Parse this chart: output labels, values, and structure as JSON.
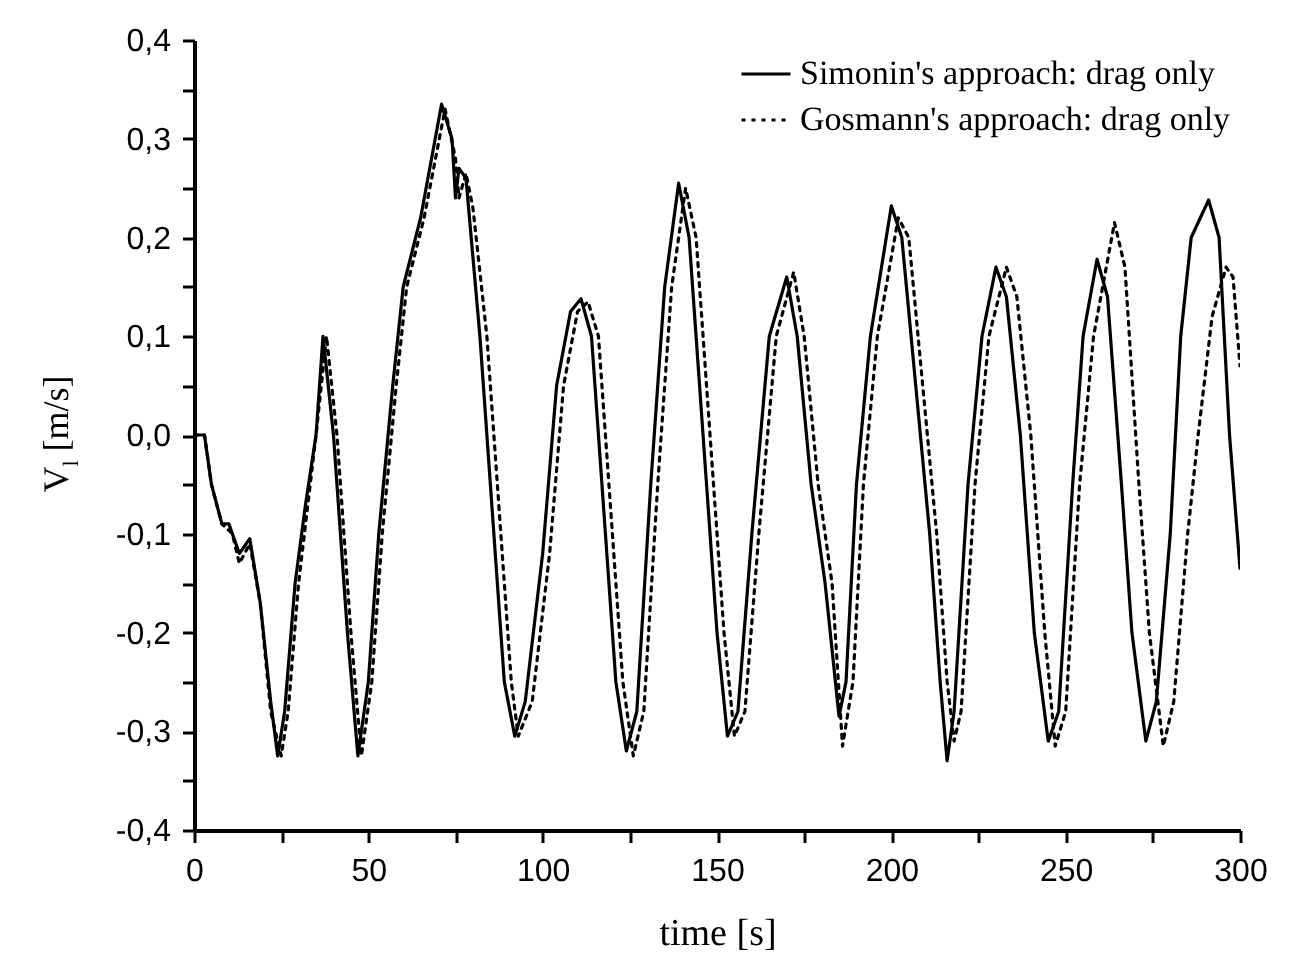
{
  "chart_data": {
    "type": "line",
    "xlabel": "time [s]",
    "ylabel": "V$_{l}$ [m/s]",
    "legend": "top right",
    "xlim": [
      0,
      300
    ],
    "ylim": [
      -0.4,
      0.4
    ],
    "xticks": [
      0,
      {
        "value": 25,
        "label": null
      },
      50,
      {
        "value": 75,
        "label": null
      },
      100,
      {
        "value": 125,
        "label": null
      },
      150,
      {
        "value": 175,
        "label": null
      },
      200,
      {
        "value": 225,
        "label": null
      },
      250,
      {
        "value": 275,
        "label": null
      },
      300
    ],
    "yticks": [
      {
        "value": -0.4,
        "label": "-0,4"
      },
      {
        "value": -0.35,
        "label": null
      },
      {
        "value": -0.3,
        "label": "-0,3"
      },
      {
        "value": -0.25,
        "label": null
      },
      {
        "value": -0.2,
        "label": "-0,2"
      },
      {
        "value": -0.15,
        "label": null
      },
      {
        "value": -0.1,
        "label": "-0,1"
      },
      {
        "value": -0.05,
        "label": null
      },
      {
        "value": 0,
        "label": "0,0"
      },
      {
        "value": 0.05,
        "label": null
      },
      {
        "value": 0.1,
        "label": "0,1"
      },
      {
        "value": 0.15,
        "label": null
      },
      {
        "value": 0.2,
        "label": "0,2"
      },
      {
        "value": 0.25,
        "label": null
      },
      {
        "value": 0.3,
        "label": "0,3"
      },
      {
        "value": 0.35,
        "label": null
      },
      {
        "value": 0.4,
        "label": "0,4"
      }
    ],
    "series": [
      {
        "name": "Simonin's approach: drag only",
        "color": "#000000",
        "line_style": "solid",
        "x": [
          0,
          3,
          5,
          8,
          10,
          13,
          16,
          19,
          22,
          24,
          26,
          29,
          32,
          35,
          37,
          40,
          44,
          47,
          50,
          53,
          57,
          60,
          65,
          71,
          74,
          75,
          76,
          78,
          82,
          86,
          89,
          92,
          95,
          100,
          104,
          108,
          111,
          114,
          118,
          121,
          124,
          127,
          131,
          135,
          139,
          142,
          146,
          150,
          153,
          156,
          160,
          165,
          170,
          173,
          177,
          181,
          185,
          187,
          190,
          194,
          200,
          203,
          207,
          211,
          214,
          216,
          218,
          222,
          226,
          230,
          233,
          237,
          241,
          245,
          248,
          252,
          255,
          259,
          262,
          266,
          269,
          273,
          276,
          280,
          283,
          286,
          291,
          294,
          297,
          300
        ],
        "values": [
          0,
          0,
          -0.05,
          -0.09,
          -0.09,
          -0.12,
          -0.105,
          -0.17,
          -0.27,
          -0.325,
          -0.28,
          -0.15,
          -0.07,
          0.0,
          0.1,
          0.0,
          -0.2,
          -0.325,
          -0.25,
          -0.1,
          0.05,
          0.15,
          0.22,
          0.335,
          0.3,
          0.24,
          0.27,
          0.26,
          0.1,
          -0.1,
          -0.25,
          -0.305,
          -0.27,
          -0.12,
          0.05,
          0.125,
          0.138,
          0.1,
          -0.1,
          -0.25,
          -0.32,
          -0.28,
          -0.05,
          0.15,
          0.255,
          0.2,
          0.0,
          -0.2,
          -0.305,
          -0.28,
          -0.1,
          0.1,
          0.16,
          0.1,
          -0.05,
          -0.15,
          -0.285,
          -0.25,
          -0.05,
          0.1,
          0.232,
          0.2,
          0.05,
          -0.1,
          -0.25,
          -0.33,
          -0.28,
          -0.05,
          0.1,
          0.17,
          0.14,
          0.0,
          -0.2,
          -0.31,
          -0.28,
          -0.05,
          0.1,
          0.178,
          0.14,
          -0.05,
          -0.2,
          -0.31,
          -0.27,
          -0.1,
          0.1,
          0.2,
          0.238,
          0.2,
          0.0,
          -0.135
        ]
      },
      {
        "name": "Gosmann's approach: drag only",
        "color": "#000000",
        "line_style": "dotted",
        "x": [
          0,
          3,
          5,
          8,
          11,
          13,
          16,
          19,
          22,
          25,
          27,
          30,
          33,
          35,
          38,
          41,
          45,
          48,
          51,
          54,
          58,
          61,
          66,
          72,
          75,
          76,
          78,
          80,
          84,
          88,
          91,
          93,
          97,
          102,
          106,
          110,
          113,
          116,
          120,
          123,
          126,
          129,
          133,
          137,
          141,
          144,
          148,
          152,
          155,
          158,
          162,
          167,
          172,
          175,
          179,
          183,
          186,
          189,
          192,
          196,
          202,
          205,
          209,
          213,
          216,
          218,
          220,
          224,
          228,
          233,
          236,
          240,
          244,
          247,
          250,
          254,
          258,
          264,
          267,
          271,
          274,
          278,
          281,
          285,
          288,
          292,
          296,
          298,
          300
        ],
        "values": [
          0,
          0,
          -0.05,
          -0.09,
          -0.1,
          -0.13,
          -0.11,
          -0.17,
          -0.28,
          -0.325,
          -0.28,
          -0.15,
          -0.06,
          0.0,
          0.1,
          0.0,
          -0.2,
          -0.325,
          -0.25,
          -0.1,
          0.05,
          0.15,
          0.22,
          0.33,
          0.28,
          0.24,
          0.265,
          0.23,
          0.1,
          -0.1,
          -0.25,
          -0.305,
          -0.27,
          -0.12,
          0.05,
          0.125,
          0.135,
          0.1,
          -0.1,
          -0.25,
          -0.325,
          -0.28,
          -0.05,
          0.15,
          0.25,
          0.2,
          0.0,
          -0.2,
          -0.305,
          -0.28,
          -0.1,
          0.1,
          0.165,
          0.1,
          -0.05,
          -0.15,
          -0.315,
          -0.25,
          -0.05,
          0.1,
          0.22,
          0.2,
          0.05,
          -0.1,
          -0.25,
          -0.31,
          -0.28,
          -0.05,
          0.1,
          0.17,
          0.14,
          0.0,
          -0.2,
          -0.315,
          -0.28,
          -0.05,
          0.1,
          0.215,
          0.17,
          -0.05,
          -0.2,
          -0.315,
          -0.27,
          -0.1,
          0.0,
          0.12,
          0.17,
          0.16,
          0.07
        ]
      }
    ]
  }
}
